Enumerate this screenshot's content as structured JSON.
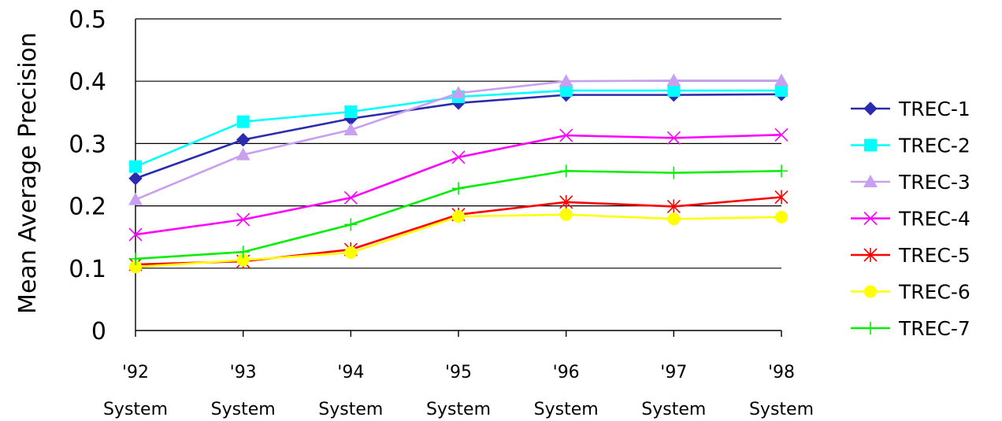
{
  "chart_data": {
    "type": "line",
    "ylabel": "Mean Average Precision",
    "xlabel": "",
    "ylim": [
      0,
      0.5
    ],
    "yticks": [
      "0",
      "0.1",
      "0.2",
      "0.3",
      "0.4",
      "0.5"
    ],
    "grid": "horizontal",
    "legend": "right",
    "categories": [
      {
        "year": "'92",
        "sub": "System"
      },
      {
        "year": "'93",
        "sub": "System"
      },
      {
        "year": "'94",
        "sub": "System"
      },
      {
        "year": "'95",
        "sub": "System"
      },
      {
        "year": "'96",
        "sub": "System"
      },
      {
        "year": "'97",
        "sub": "System"
      },
      {
        "year": "'98",
        "sub": "System"
      }
    ],
    "series": [
      {
        "name": "TREC-1",
        "color": "#2b2bb0",
        "marker": "diamond",
        "values": [
          0.244,
          0.306,
          0.34,
          0.365,
          0.378,
          0.378,
          0.379
        ]
      },
      {
        "name": "TREC-2",
        "color": "#00ffff",
        "marker": "square",
        "values": [
          0.263,
          0.335,
          0.351,
          0.375,
          0.385,
          0.385,
          0.385
        ]
      },
      {
        "name": "TREC-3",
        "color": "#c8a0f0",
        "marker": "triangle",
        "values": [
          0.21,
          0.282,
          0.322,
          0.381,
          0.4,
          0.401,
          0.401
        ]
      },
      {
        "name": "TREC-4",
        "color": "#ff00ff",
        "marker": "x",
        "values": [
          0.154,
          0.178,
          0.213,
          0.278,
          0.313,
          0.309,
          0.314
        ]
      },
      {
        "name": "TREC-5",
        "color": "#ff0000",
        "marker": "star",
        "values": [
          0.106,
          0.111,
          0.13,
          0.186,
          0.206,
          0.199,
          0.214
        ]
      },
      {
        "name": "TREC-6",
        "color": "#ffff00",
        "marker": "circle",
        "values": [
          0.102,
          0.113,
          0.125,
          0.183,
          0.186,
          0.179,
          0.182
        ]
      },
      {
        "name": "TREC-7",
        "color": "#00ee00",
        "marker": "plus",
        "values": [
          0.115,
          0.126,
          0.17,
          0.228,
          0.256,
          0.253,
          0.256
        ]
      }
    ]
  }
}
